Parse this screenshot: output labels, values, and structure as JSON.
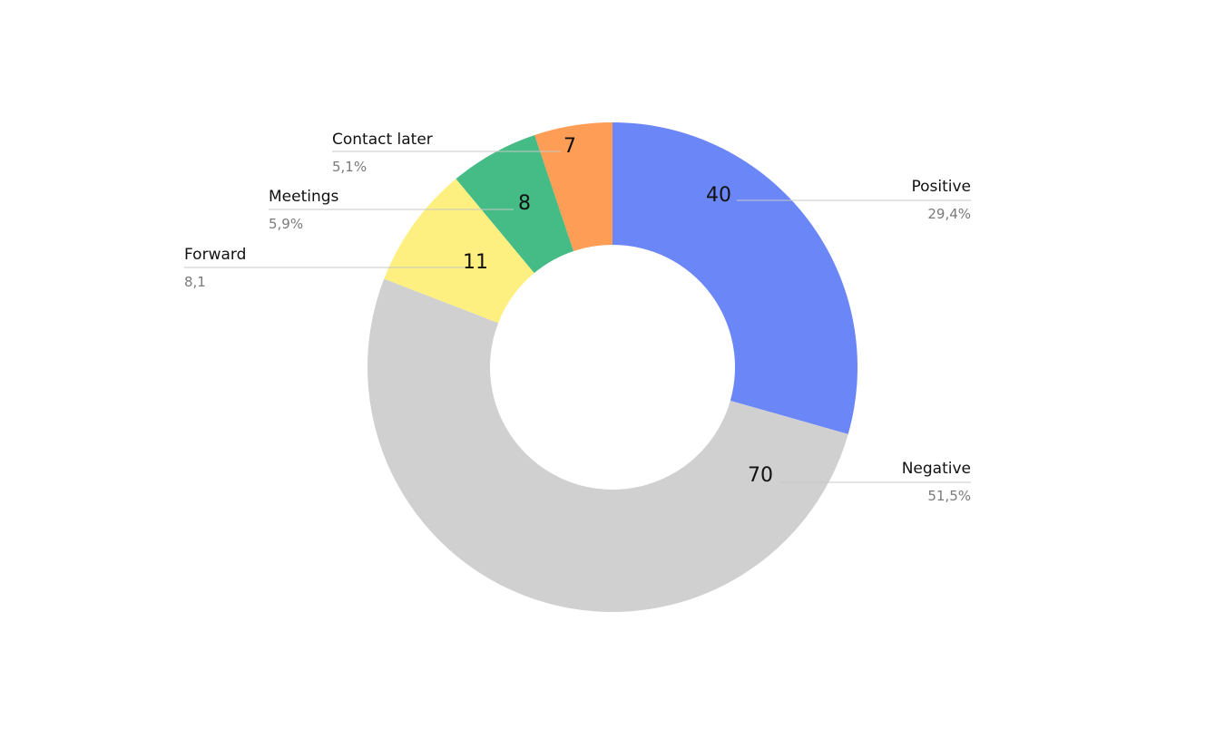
{
  "chart_data": {
    "type": "pie",
    "title": "",
    "donut": true,
    "legend": "none",
    "slices": [
      {
        "label": "Positive",
        "value": 40,
        "percent_label": "29,4%",
        "color": "#6b87f7"
      },
      {
        "label": "Negative",
        "value": 70,
        "percent_label": "51,5%",
        "color": "#d0d0d0"
      },
      {
        "label": "Forward",
        "value": 11,
        "percent_label": "8,1",
        "color": "#fdf081"
      },
      {
        "label": "Meetings",
        "value": 8,
        "percent_label": "5,9%",
        "color": "#45bb85"
      },
      {
        "label": "Contact later",
        "value": 7,
        "percent_label": "5,1%",
        "color": "#fe9d55"
      }
    ]
  }
}
